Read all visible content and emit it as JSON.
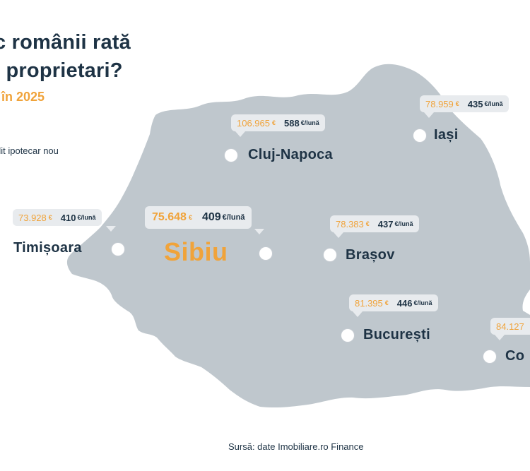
{
  "header": {
    "title_line1": "c românii rată",
    "title_line2": "i proprietari?",
    "subtitle": "i în 2025",
    "legend": "dit ipotecar nou"
  },
  "currency_symbol": "€",
  "rate_unit": "€/lună",
  "cities": [
    {
      "name": "Cluj-Napoca",
      "price": "106.965",
      "rate": "588",
      "highlight": false
    },
    {
      "name": "Iași",
      "price": "78.959",
      "rate": "435",
      "highlight": false
    },
    {
      "name": "Timișoara",
      "price": "73.928",
      "rate": "410",
      "highlight": false
    },
    {
      "name": "Sibiu",
      "price": "75.648",
      "rate": "409",
      "highlight": true
    },
    {
      "name": "Brașov",
      "price": "78.383",
      "rate": "437",
      "highlight": false
    },
    {
      "name": "București",
      "price": "81.395",
      "rate": "446",
      "highlight": false
    },
    {
      "name": "Co",
      "price": "84.127",
      "rate": "",
      "highlight": false
    }
  ],
  "source": "Sursă: date Imobiliare.ro Finance",
  "colors": {
    "map_fill": "#bfc7cd",
    "accent": "#f0a33a",
    "dark": "#1e3345",
    "bubble": "#e8ebee"
  }
}
